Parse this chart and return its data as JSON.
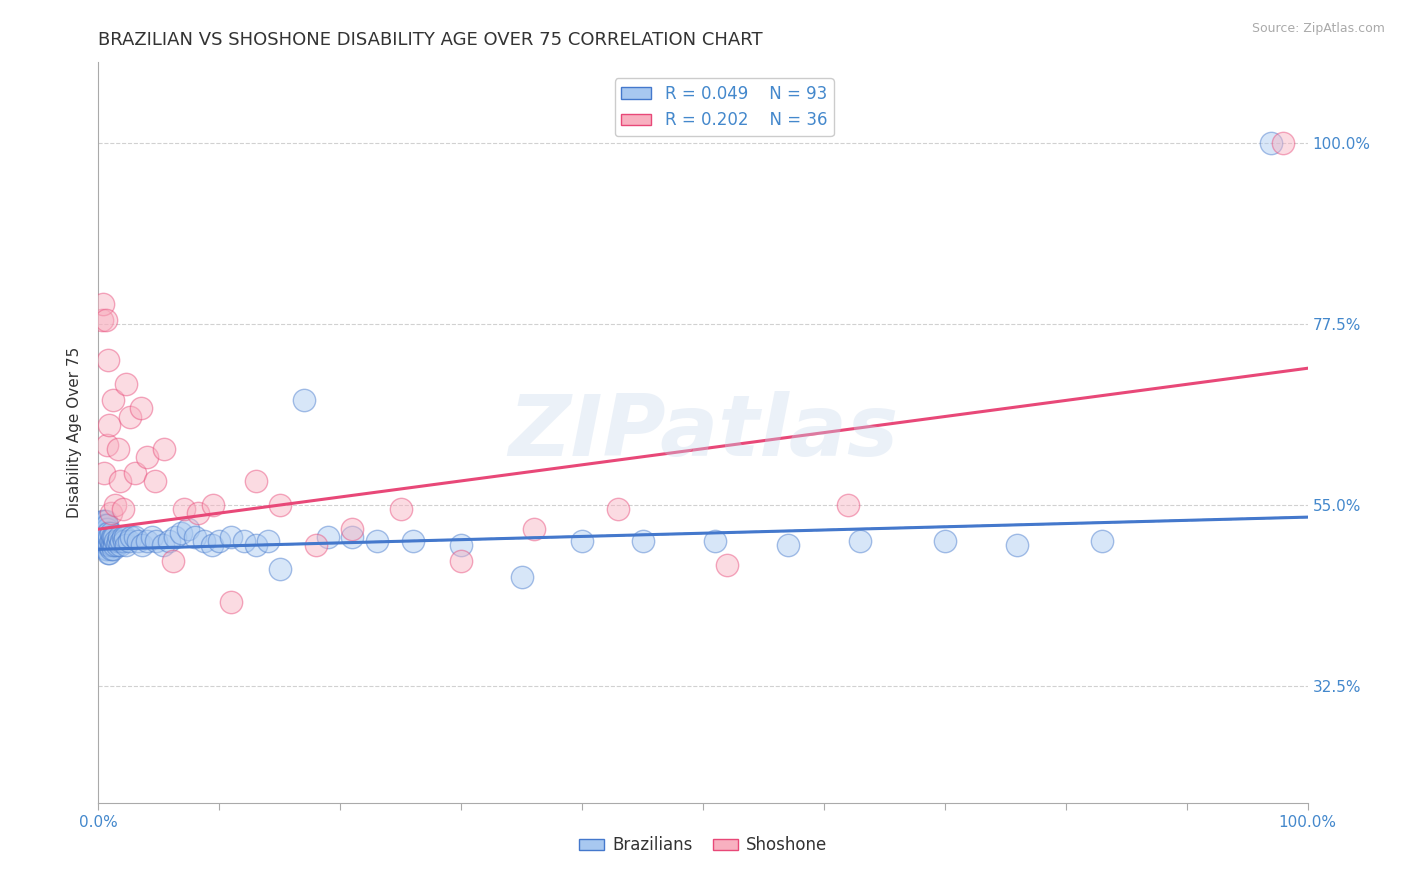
{
  "title": "BRAZILIAN VS SHOSHONE DISABILITY AGE OVER 75 CORRELATION CHART",
  "source_text": "Source: ZipAtlas.com",
  "ylabel": "Disability Age Over 75",
  "ytick_labels": [
    "32.5%",
    "55.0%",
    "77.5%",
    "100.0%"
  ],
  "ytick_values": [
    0.325,
    0.55,
    0.775,
    1.0
  ],
  "xmin": 0.0,
  "xmax": 1.0,
  "ymin": 0.18,
  "ymax": 1.1,
  "legend_r_blue": "R = 0.049",
  "legend_n_blue": "N = 93",
  "legend_r_pink": "R = 0.202",
  "legend_n_pink": "N = 36",
  "blue_fill": "#a8c8f0",
  "blue_edge": "#4478cc",
  "pink_fill": "#f8b0c0",
  "pink_edge": "#e84878",
  "blue_line_color": "#4478cc",
  "pink_line_color": "#e84878",
  "grid_color": "#cccccc",
  "axis_color": "#aaaaaa",
  "text_color": "#333333",
  "tick_color": "#4488cc",
  "watermark_color": "#c8d8ec",
  "title_fontsize": 13,
  "label_fontsize": 11,
  "tick_fontsize": 11,
  "source_fontsize": 9,
  "blue_scatter_x": [
    0.002,
    0.003,
    0.003,
    0.003,
    0.004,
    0.004,
    0.004,
    0.004,
    0.005,
    0.005,
    0.005,
    0.005,
    0.005,
    0.005,
    0.006,
    0.006,
    0.006,
    0.006,
    0.006,
    0.006,
    0.006,
    0.007,
    0.007,
    0.007,
    0.007,
    0.007,
    0.007,
    0.007,
    0.008,
    0.008,
    0.008,
    0.008,
    0.008,
    0.009,
    0.009,
    0.009,
    0.01,
    0.01,
    0.01,
    0.011,
    0.011,
    0.012,
    0.012,
    0.013,
    0.013,
    0.014,
    0.015,
    0.016,
    0.017,
    0.018,
    0.019,
    0.02,
    0.021,
    0.022,
    0.023,
    0.025,
    0.027,
    0.03,
    0.033,
    0.036,
    0.04,
    0.044,
    0.048,
    0.053,
    0.058,
    0.063,
    0.068,
    0.074,
    0.08,
    0.087,
    0.094,
    0.1,
    0.11,
    0.12,
    0.13,
    0.14,
    0.15,
    0.17,
    0.19,
    0.21,
    0.23,
    0.26,
    0.3,
    0.35,
    0.4,
    0.45,
    0.51,
    0.57,
    0.63,
    0.7,
    0.76,
    0.83,
    0.97
  ],
  "blue_scatter_y": [
    0.505,
    0.51,
    0.52,
    0.525,
    0.505,
    0.515,
    0.52,
    0.53,
    0.5,
    0.51,
    0.515,
    0.52,
    0.525,
    0.53,
    0.495,
    0.505,
    0.51,
    0.515,
    0.52,
    0.525,
    0.53,
    0.495,
    0.5,
    0.505,
    0.51,
    0.515,
    0.52,
    0.525,
    0.49,
    0.5,
    0.505,
    0.51,
    0.515,
    0.49,
    0.5,
    0.51,
    0.495,
    0.505,
    0.515,
    0.5,
    0.51,
    0.495,
    0.51,
    0.5,
    0.51,
    0.505,
    0.5,
    0.505,
    0.51,
    0.5,
    0.505,
    0.51,
    0.505,
    0.51,
    0.5,
    0.505,
    0.51,
    0.51,
    0.505,
    0.5,
    0.505,
    0.51,
    0.505,
    0.5,
    0.505,
    0.51,
    0.515,
    0.52,
    0.51,
    0.505,
    0.5,
    0.505,
    0.51,
    0.505,
    0.5,
    0.505,
    0.47,
    0.68,
    0.51,
    0.51,
    0.505,
    0.505,
    0.5,
    0.46,
    0.505,
    0.505,
    0.505,
    0.5,
    0.505,
    0.505,
    0.5,
    0.505,
    1.0
  ],
  "pink_scatter_x": [
    0.003,
    0.004,
    0.005,
    0.006,
    0.007,
    0.008,
    0.009,
    0.01,
    0.012,
    0.014,
    0.016,
    0.018,
    0.02,
    0.023,
    0.026,
    0.03,
    0.035,
    0.04,
    0.047,
    0.054,
    0.062,
    0.071,
    0.082,
    0.095,
    0.11,
    0.13,
    0.15,
    0.18,
    0.21,
    0.25,
    0.3,
    0.36,
    0.43,
    0.52,
    0.62,
    0.98
  ],
  "pink_scatter_y": [
    0.78,
    0.8,
    0.59,
    0.78,
    0.625,
    0.73,
    0.65,
    0.54,
    0.68,
    0.55,
    0.62,
    0.58,
    0.545,
    0.7,
    0.66,
    0.59,
    0.67,
    0.61,
    0.58,
    0.62,
    0.48,
    0.545,
    0.54,
    0.55,
    0.43,
    0.58,
    0.55,
    0.5,
    0.52,
    0.545,
    0.48,
    0.52,
    0.545,
    0.475,
    0.55,
    1.0
  ],
  "blue_trend_x": [
    0.0,
    1.0
  ],
  "blue_trend_y": [
    0.495,
    0.535
  ],
  "pink_trend_x": [
    0.0,
    1.0
  ],
  "pink_trend_y": [
    0.52,
    0.72
  ],
  "background_color": "#ffffff",
  "watermark_text": "ZIPatlas",
  "watermark_alpha": 0.35,
  "legend_label_blue": "Brazilians",
  "legend_label_pink": "Shoshone",
  "xtick_values": [
    0.0,
    0.1,
    0.2,
    0.3,
    0.4,
    0.5,
    0.6,
    0.7,
    0.8,
    0.9,
    1.0
  ],
  "xtick_labels_show": [
    "0.0%",
    "",
    "",
    "",
    "",
    "",
    "",
    "",
    "",
    "",
    "100.0%"
  ]
}
